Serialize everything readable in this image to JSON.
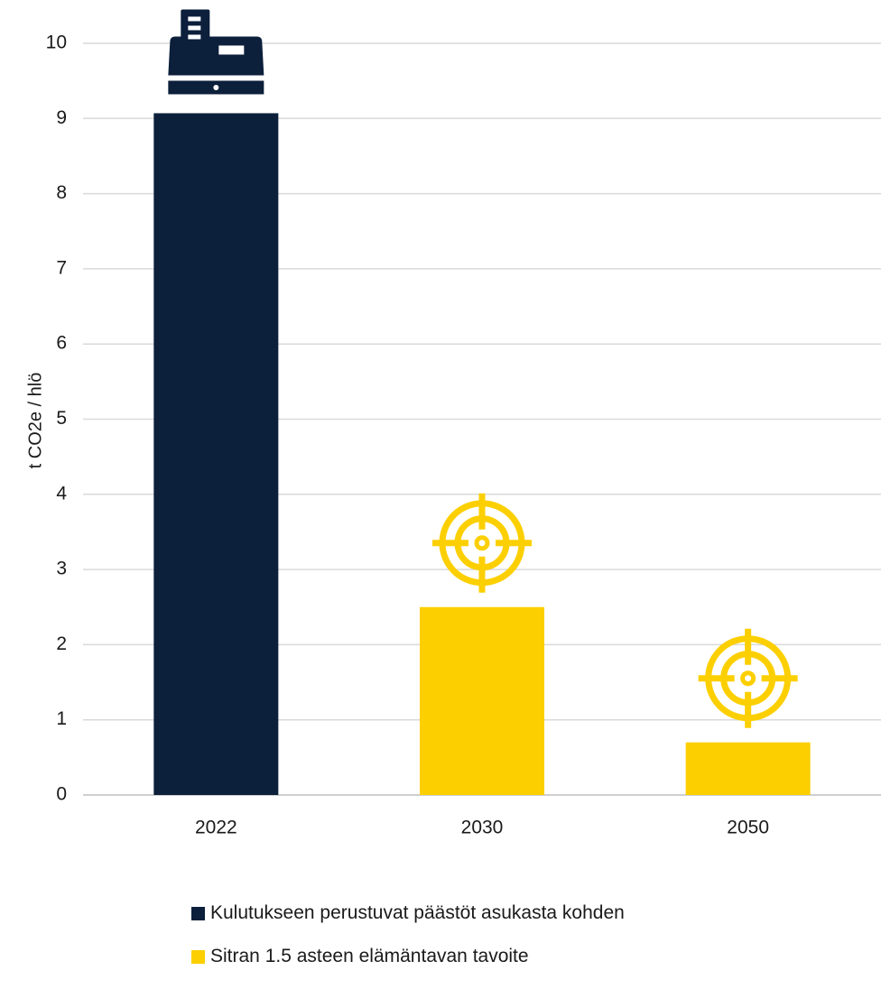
{
  "colors": {
    "navy": "#0c1f3b",
    "yellow": "#fccf00",
    "grid": "#d9d9d9",
    "axis": "#bfbfbf"
  },
  "chart_data": {
    "type": "bar",
    "title": "",
    "xlabel": "",
    "ylabel": "t CO2e / hlö",
    "ylim": [
      0,
      10
    ],
    "yticks": [
      0,
      1,
      2,
      3,
      4,
      5,
      6,
      7,
      8,
      9,
      10
    ],
    "grid": true,
    "legend_position": "bottom",
    "categories": [
      "2022",
      "2030",
      "2050"
    ],
    "series": [
      {
        "name": "Kulutukseen perustuvat päästöt asukasta kohden",
        "color": "#0c1f3b",
        "values": [
          9.07,
          null,
          null
        ]
      },
      {
        "name": "Sitran 1.5 asteen elämäntavan tavoite",
        "color": "#fccf00",
        "values": [
          null,
          2.5,
          0.7
        ]
      }
    ],
    "bar_icons": [
      "cash-register-icon",
      "target-icon",
      "target-icon"
    ]
  }
}
